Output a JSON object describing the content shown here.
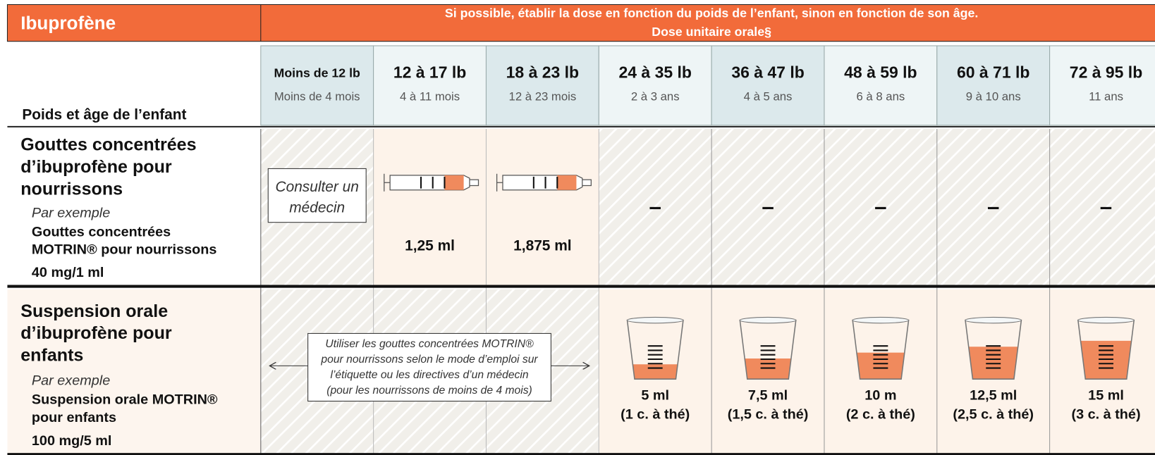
{
  "header": {
    "title": "Ibuprofène",
    "note_line1": "Si possible, établir la dose en fonction du poids de l’enfant, sinon en fonction de son âge.",
    "note_line2": "Dose unitaire orale§"
  },
  "table": {
    "row_header_label": "Poids et âge de l’enfant",
    "columns": [
      {
        "weight": "Moins de 12 lb",
        "age": "Moins de 4 mois"
      },
      {
        "weight": "12 à 17 lb",
        "age": "4 à 11 mois"
      },
      {
        "weight": "18 à 23 lb",
        "age": "12 à 23 mois"
      },
      {
        "weight": "24 à 35 lb",
        "age": "2 à 3 ans"
      },
      {
        "weight": "36 à 47 lb",
        "age": "4 à 5 ans"
      },
      {
        "weight": "48 à 59 lb",
        "age": "6 à 8 ans"
      },
      {
        "weight": "60 à 71 lb",
        "age": "9 à 10 ans"
      },
      {
        "weight": "72 à 95 lb",
        "age": "11 ans"
      }
    ],
    "rows": [
      {
        "name_lines": [
          "Gouttes concentrées",
          "d’ibuprofène pour",
          "nourrissons"
        ],
        "example_label": "Par exemple",
        "example_lines": [
          "Gouttes concentrées",
          "MOTRIN® pour nourrissons"
        ],
        "strength": "40 mg/1 ml",
        "consult_lines": [
          "Consulter un",
          "médecin"
        ],
        "doses": [
          "1,25 ml",
          "1,875 ml"
        ],
        "dashes": [
          "–",
          "–",
          "–",
          "–",
          "–"
        ]
      },
      {
        "name_lines": [
          "Suspension orale",
          "d’ibuprofène pour",
          "enfants"
        ],
        "example_label": "Par exemple",
        "example_lines": [
          "Suspension orale MOTRIN®",
          "pour enfants"
        ],
        "strength": "100 mg/5 ml",
        "note_lines": [
          "Utiliser les gouttes concentrées MOTRIN®",
          "pour nourrissons selon le mode d’emploi sur",
          "l’étiquette ou les directives d’un médecin",
          "(pour les nourrissons de moins de 4 mois)"
        ],
        "doses": [
          [
            "5 ml",
            "(1 c. à thé)"
          ],
          [
            "7,5 ml",
            "(1,5 c. à thé)"
          ],
          [
            "10 m",
            "(2 c. à thé)"
          ],
          [
            "12,5 ml",
            "(2,5 c. à thé)"
          ],
          [
            "15 ml",
            "(3 c. à thé)"
          ]
        ]
      }
    ]
  }
}
